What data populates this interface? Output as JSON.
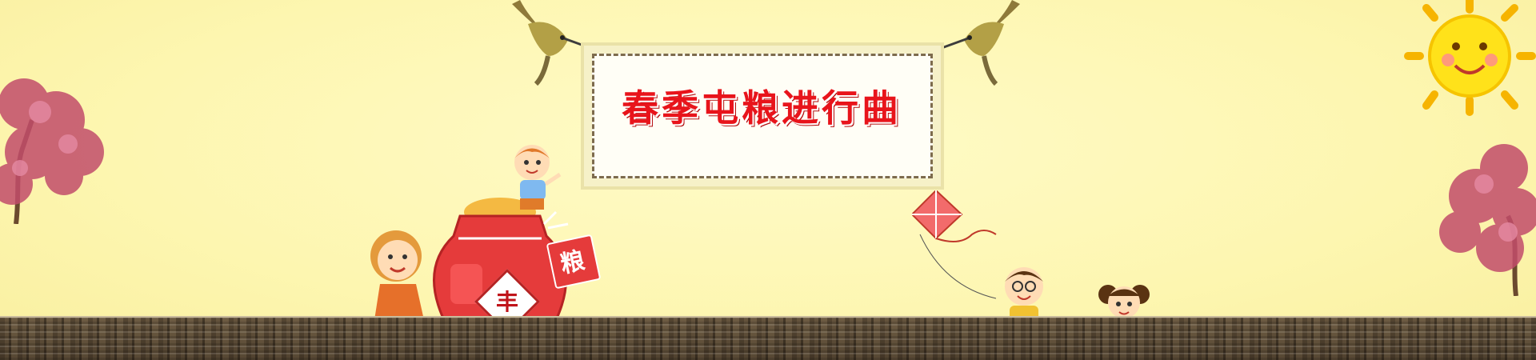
{
  "banner": {
    "title": "春季屯粮进行曲"
  },
  "jar": {
    "tag_label": "粮",
    "emblem_label": "丰"
  },
  "colors": {
    "background": "#fdf7b5",
    "title_red": "#e8141b",
    "jar_red": "#e53b3b",
    "ground": "#8a7d6a"
  },
  "icons": [
    "hummingbird-icon",
    "sun-icon",
    "kite-icon",
    "blossom-tree-icon",
    "child-figure-icon",
    "dog-icon"
  ]
}
